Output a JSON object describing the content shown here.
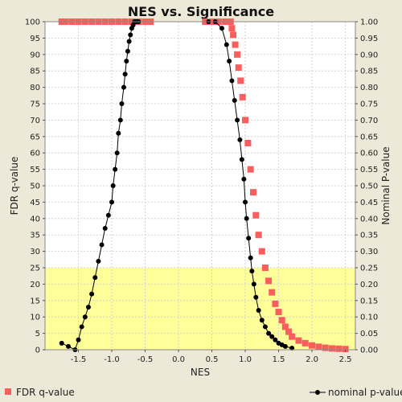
{
  "chart_data": {
    "type": "scatter",
    "title": "NES vs. Significance",
    "xlabel": "NES",
    "ylabel_left": "FDR q-value",
    "ylabel_right": "Nominal P-value",
    "xlim": [
      -2.0,
      2.65
    ],
    "ylim_left": [
      0,
      100
    ],
    "ylim_right": [
      0.0,
      1.0
    ],
    "x_ticks": [
      -1.5,
      -1.0,
      -0.5,
      0.0,
      0.5,
      1.0,
      1.5,
      2.0,
      2.5
    ],
    "x_tick_labels": [
      "-1.5",
      "-1.0",
      "-0.5",
      "0.0",
      "0.5",
      "1.0",
      "1.5",
      "2.0",
      "2.5"
    ],
    "y_ticks_left": [
      0,
      5,
      10,
      15,
      20,
      25,
      30,
      35,
      40,
      45,
      50,
      55,
      60,
      65,
      70,
      75,
      80,
      85,
      90,
      95,
      100
    ],
    "y_tick_labels_left": [
      "0",
      "5",
      "10",
      "15",
      "20",
      "25",
      "30",
      "35",
      "40",
      "45",
      "50",
      "55",
      "60",
      "65",
      "70",
      "75",
      "80",
      "85",
      "90",
      "95",
      "100"
    ],
    "y_tick_labels_right": [
      "0.00",
      "0.05",
      "0.10",
      "0.15",
      "0.20",
      "0.25",
      "0.30",
      "0.35",
      "0.40",
      "0.45",
      "0.50",
      "0.55",
      "0.60",
      "0.65",
      "0.70",
      "0.75",
      "0.80",
      "0.85",
      "0.90",
      "0.95",
      "1.00"
    ],
    "highlight_band": {
      "from": 0,
      "to": 25,
      "color": "#ffff99"
    },
    "grid": true,
    "legend_placement": "bottom",
    "series": [
      {
        "name": "FDR q-value",
        "axis": "left",
        "color": "#f85e5e",
        "marker": "square",
        "x": [
          -1.75,
          -1.7,
          -1.6,
          -1.5,
          -1.4,
          -1.3,
          -1.2,
          -1.1,
          -1.0,
          -0.9,
          -0.8,
          -0.7,
          -0.6,
          -0.5,
          -0.42,
          0.4,
          0.5,
          0.6,
          0.7,
          0.78,
          0.8,
          0.82,
          0.85,
          0.88,
          0.9,
          0.93,
          0.96,
          1.0,
          1.04,
          1.08,
          1.12,
          1.16,
          1.2,
          1.25,
          1.3,
          1.35,
          1.4,
          1.45,
          1.5,
          1.55,
          1.6,
          1.65,
          1.7,
          1.8,
          1.9,
          2.0,
          2.1,
          2.2,
          2.3,
          2.4,
          2.5
        ],
        "y": [
          100,
          100,
          100,
          100,
          100,
          100,
          100,
          100,
          100,
          100,
          100,
          100,
          100,
          100,
          100,
          100,
          100,
          100,
          100,
          100,
          98,
          96,
          93,
          90,
          86,
          82,
          77,
          70,
          63,
          55,
          48,
          41,
          35,
          30,
          25,
          21,
          17.5,
          14,
          11.5,
          9,
          7,
          5.5,
          4,
          2.8,
          2,
          1.3,
          0.9,
          0.6,
          0.4,
          0.3,
          0.2
        ]
      },
      {
        "name": "nominal p-value",
        "axis": "right",
        "color": "#000000",
        "marker": "circle",
        "x": [
          -1.75,
          -1.65,
          -1.55,
          -1.5,
          -1.45,
          -1.4,
          -1.35,
          -1.3,
          -1.25,
          -1.2,
          -1.15,
          -1.1,
          -1.05,
          -1.0,
          -0.98,
          -0.95,
          -0.92,
          -0.9,
          -0.87,
          -0.85,
          -0.82,
          -0.8,
          -0.78,
          -0.76,
          -0.74,
          -0.72,
          -0.7,
          -0.68,
          -0.66,
          -0.64,
          -0.62,
          -0.6,
          0.45,
          0.55,
          0.65,
          0.72,
          0.76,
          0.8,
          0.84,
          0.88,
          0.92,
          0.95,
          0.98,
          1.0,
          1.02,
          1.05,
          1.08,
          1.1,
          1.13,
          1.16,
          1.2,
          1.25,
          1.3,
          1.35,
          1.4,
          1.45,
          1.5,
          1.55,
          1.6,
          1.7
        ],
        "y": [
          0.02,
          0.01,
          0.0,
          0.03,
          0.07,
          0.1,
          0.13,
          0.17,
          0.22,
          0.27,
          0.32,
          0.37,
          0.41,
          0.45,
          0.5,
          0.55,
          0.6,
          0.66,
          0.7,
          0.75,
          0.8,
          0.84,
          0.88,
          0.91,
          0.94,
          0.96,
          0.98,
          0.99,
          1.0,
          1.0,
          1.0,
          1.0,
          1.0,
          1.0,
          0.98,
          0.93,
          0.88,
          0.82,
          0.76,
          0.7,
          0.64,
          0.58,
          0.52,
          0.45,
          0.4,
          0.34,
          0.28,
          0.24,
          0.2,
          0.16,
          0.12,
          0.09,
          0.07,
          0.05,
          0.04,
          0.03,
          0.02,
          0.015,
          0.01,
          0.005
        ]
      }
    ]
  }
}
